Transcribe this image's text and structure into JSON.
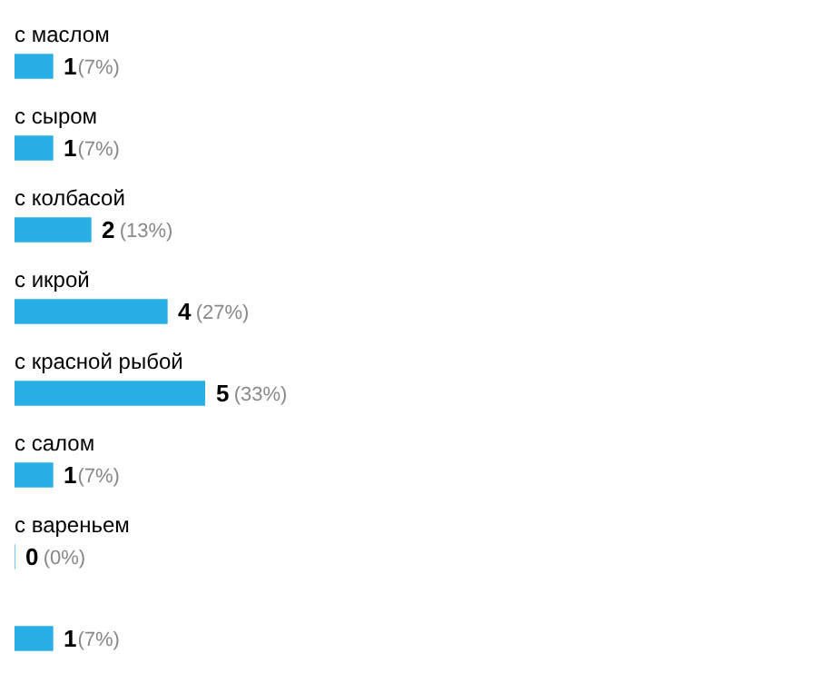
{
  "chart_data": {
    "type": "bar",
    "orientation": "horizontal",
    "categories": [
      "с маслом",
      "с сыром",
      "с колбасой",
      "с икрой",
      "с красной рыбой",
      "с салом",
      "с вареньем",
      null
    ],
    "values": [
      1,
      1,
      2,
      4,
      5,
      1,
      0,
      1
    ],
    "color": "#2aaee6",
    "value_labels": [
      "1(7%)",
      "1(7%)",
      "2 (13%)",
      "4 (27%)",
      "5 (33%)",
      "1(7%)",
      "0 (0%)",
      "1(7%)"
    ],
    "tick_labels": false,
    "grid": false,
    "legend": false
  }
}
